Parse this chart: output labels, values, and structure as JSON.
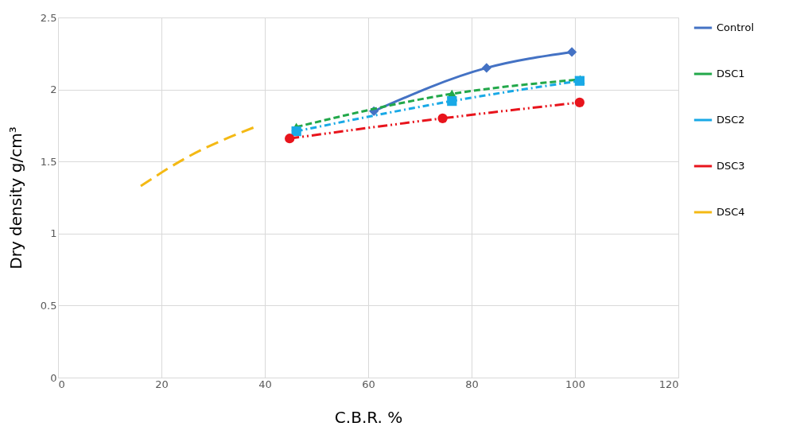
{
  "chart_data": {
    "type": "line",
    "xlabel": "C.B.R.  %",
    "ylabel": "Dry density  g/cm³",
    "xlim": [
      0,
      120
    ],
    "xticks": [
      0,
      20,
      40,
      60,
      80,
      100,
      120
    ],
    "ylim": [
      0,
      2.5
    ],
    "yticks": [
      0,
      0.5,
      1,
      1.5,
      2,
      2.5
    ],
    "grid": true,
    "legend": "right",
    "series": [
      {
        "name": "Control",
        "color": "#4472c4",
        "marker": "diamond",
        "line_style": "solid",
        "x": [
          61.1,
          82.9,
          99.4
        ],
        "values": [
          1.85,
          2.15,
          2.26
        ]
      },
      {
        "name": "DSC1",
        "color": "#22a84a",
        "marker": "triangle",
        "line_style": "dashed",
        "x": [
          46.1,
          76.2,
          101
        ],
        "values": [
          1.74,
          1.97,
          2.07
        ]
      },
      {
        "name": "DSC2",
        "color": "#19a9e6",
        "marker": "square",
        "line_style": "dashed",
        "x": [
          46.1,
          76.2,
          100.9
        ],
        "values": [
          1.71,
          1.92,
          2.06
        ]
      },
      {
        "name": "DSC3",
        "color": "#e8141c",
        "marker": "circle",
        "line_style": "dashed",
        "x": [
          44.8,
          74.4,
          100.9
        ],
        "values": [
          1.66,
          1.8,
          1.91
        ]
      },
      {
        "name": "DSC4",
        "color": "#f4b914",
        "marker": "none",
        "line_style": "dashed",
        "x": [
          16,
          25,
          38.1
        ],
        "values": [
          1.33,
          1.53,
          1.74
        ]
      }
    ]
  }
}
